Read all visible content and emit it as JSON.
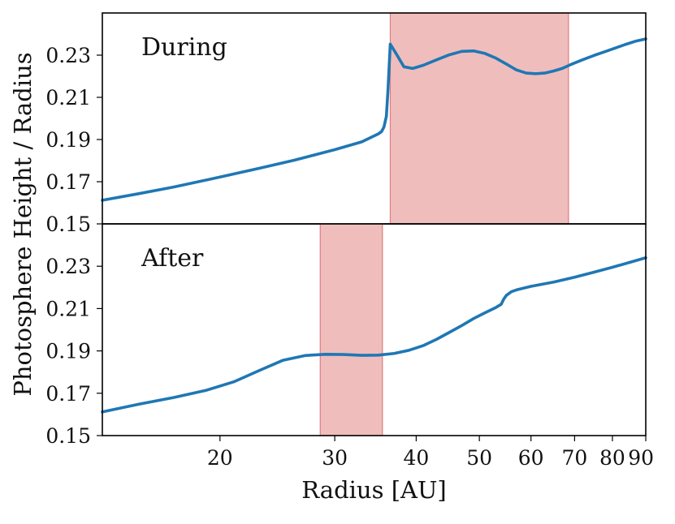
{
  "chart_data": {
    "type": "line",
    "xlabel": "Radius [AU]",
    "ylabel": "Photosphere Height / Radius",
    "xscale": "log",
    "xlim": [
      13.2,
      90
    ],
    "x_ticks": [
      20,
      30,
      40,
      50,
      60,
      70,
      80,
      90
    ],
    "x_tick_labels": [
      "20",
      "30",
      "40",
      "50",
      "60",
      "70",
      "80",
      "90"
    ],
    "panels": [
      {
        "label": "During",
        "ylim": [
          0.15,
          0.25
        ],
        "y_ticks": [
          0.15,
          0.17,
          0.19,
          0.21,
          0.23
        ],
        "y_tick_labels": [
          "0.15",
          "0.17",
          "0.19",
          "0.21",
          "0.23"
        ],
        "shaded_region": [
          36.5,
          68.5
        ],
        "series": [
          {
            "name": "During",
            "x": [
              13.2,
              15,
              17,
              20,
              23,
              26,
              30,
              33,
              35,
              35.4,
              35.7,
              36,
              36.2,
              36.5,
              37.3,
              38.3,
              39.5,
              41,
              43,
              45,
              47,
              49,
              51,
              53,
              55,
              57,
              59,
              61,
              63,
              65,
              67,
              69,
              72,
              75,
              78,
              81,
              84,
              87,
              90
            ],
            "y": [
              0.1612,
              0.1643,
              0.1675,
              0.1722,
              0.1764,
              0.1802,
              0.1852,
              0.1889,
              0.1927,
              0.1938,
              0.196,
              0.201,
              0.213,
              0.2352,
              0.2305,
              0.2245,
              0.2237,
              0.2252,
              0.2278,
              0.2302,
              0.2318,
              0.232,
              0.2308,
              0.2286,
              0.2258,
              0.223,
              0.2215,
              0.2212,
              0.2215,
              0.2225,
              0.2237,
              0.2255,
              0.2278,
              0.2299,
              0.2317,
              0.2335,
              0.2352,
              0.2367,
              0.2377
            ]
          }
        ]
      },
      {
        "label": "After",
        "ylim": [
          0.15,
          0.25
        ],
        "y_ticks": [
          0.15,
          0.17,
          0.19,
          0.21,
          0.23
        ],
        "y_tick_labels": [
          "0.15",
          "0.17",
          "0.19",
          "0.21",
          "0.23"
        ],
        "shaded_region": [
          28.5,
          35.5
        ],
        "series": [
          {
            "name": "After",
            "x": [
              13.2,
              15,
              17,
              19,
              21,
              23,
              25,
              27,
              29,
              31,
              33,
              35,
              37,
              39,
              41,
              43,
              45,
              47,
              49,
              51,
              53,
              54,
              54.5,
              55,
              56,
              57,
              60,
              65,
              70,
              75,
              80,
              85,
              90
            ],
            "y": [
              0.1612,
              0.1648,
              0.168,
              0.1713,
              0.1754,
              0.1808,
              0.1856,
              0.1878,
              0.1884,
              0.1883,
              0.1879,
              0.188,
              0.1888,
              0.1903,
              0.1925,
              0.1955,
              0.1988,
              0.202,
              0.2053,
              0.208,
              0.2105,
              0.212,
              0.2145,
              0.2162,
              0.218,
              0.2188,
              0.2205,
              0.2225,
              0.2248,
              0.2272,
              0.2295,
              0.2318,
              0.234
            ]
          }
        ]
      }
    ]
  }
}
